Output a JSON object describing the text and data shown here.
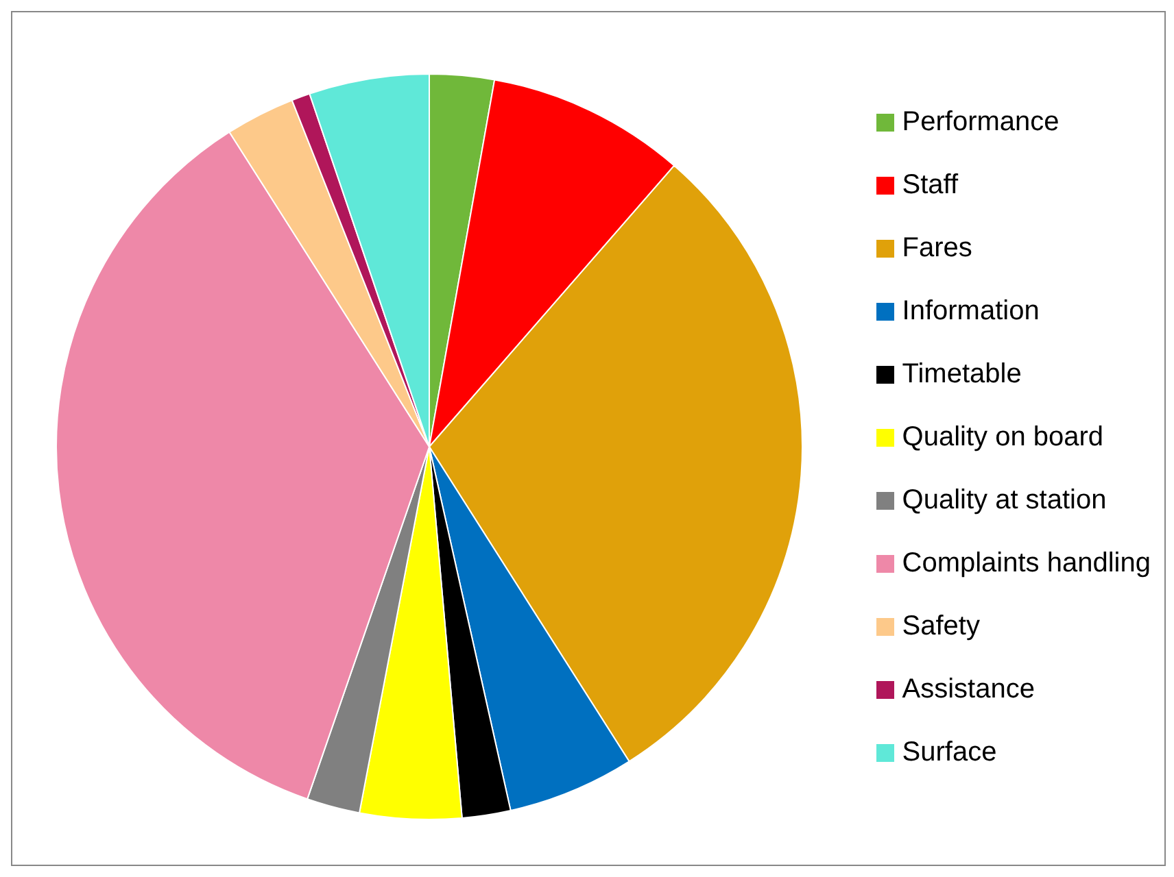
{
  "chart_data": {
    "type": "pie",
    "legend": "right",
    "categories": [
      "Performance",
      "Staff",
      "Fares",
      "Information",
      "Timetable",
      "Quality on board",
      "Quality at station",
      "Complaints handling",
      "Safety",
      "Assistance",
      "Surface"
    ],
    "values": [
      2.8,
      8.6,
      29.6,
      5.5,
      2.1,
      4.4,
      2.3,
      35.7,
      3.0,
      0.8,
      5.2
    ],
    "colors": [
      "#70b83a",
      "#ff0000",
      "#e0a10a",
      "#0070c0",
      "#000000",
      "#ffff00",
      "#808080",
      "#ee88a8",
      "#fdc98a",
      "#b0165a",
      "#5fe8d8"
    ]
  }
}
